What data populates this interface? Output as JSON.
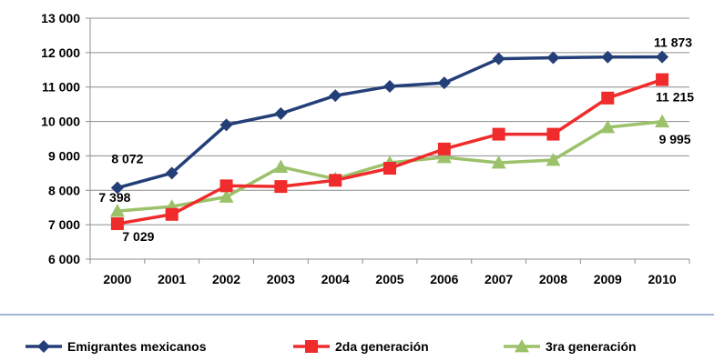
{
  "chart_data": {
    "type": "line",
    "title": "",
    "xlabel": "",
    "ylabel": "",
    "categories": [
      "2000",
      "2001",
      "2002",
      "2003",
      "2004",
      "2005",
      "2006",
      "2007",
      "2008",
      "2009",
      "2010"
    ],
    "ylim": [
      6000,
      13000
    ],
    "yticks": [
      6000,
      7000,
      8000,
      9000,
      10000,
      11000,
      12000,
      13000
    ],
    "ytick_labels": [
      "6 000",
      "7 000",
      "8 000",
      "9 000",
      "10 000",
      "11 000",
      "12 000",
      "13 000"
    ],
    "grid": true,
    "legend_position": "bottom",
    "series": [
      {
        "name": "Emigrantes mexicanos",
        "color": "#243f78",
        "marker": "diamond",
        "values": [
          8072,
          8500,
          9900,
          10230,
          10750,
          11020,
          11120,
          11820,
          11850,
          11870,
          11873
        ]
      },
      {
        "name": "2da generación",
        "color": "#ef2b2b",
        "marker": "square",
        "values": [
          7029,
          7300,
          8130,
          8110,
          8290,
          8640,
          9200,
          9630,
          9630,
          10680,
          11215
        ]
      },
      {
        "name": "3ra generación",
        "color": "#9bc26a",
        "marker": "triangle",
        "values": [
          7398,
          7530,
          7810,
          8680,
          8330,
          8800,
          8960,
          8800,
          8880,
          9830,
          9995
        ]
      }
    ],
    "data_labels": [
      {
        "series": 0,
        "index": 0,
        "text": "8 072",
        "position": "above"
      },
      {
        "series": 0,
        "index": 10,
        "text": "11 873",
        "position": "above"
      },
      {
        "series": 1,
        "index": 0,
        "text": "7 029",
        "position": "below"
      },
      {
        "series": 1,
        "index": 10,
        "text": "11 215",
        "position": "below"
      },
      {
        "series": 2,
        "index": 0,
        "text": "7 398",
        "position": "below-left"
      },
      {
        "series": 2,
        "index": 10,
        "text": "9 995",
        "position": "below"
      }
    ]
  }
}
